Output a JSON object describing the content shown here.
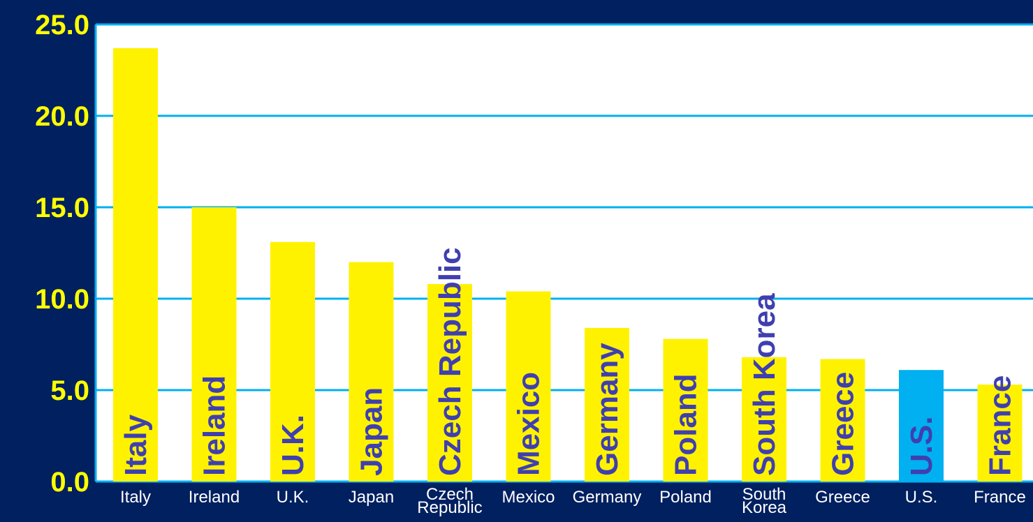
{
  "chart_data": {
    "type": "bar",
    "categories": [
      "Italy",
      "Ireland",
      "U.K.",
      "Japan",
      "Czech Republic",
      "Mexico",
      "Germany",
      "Poland",
      "South Korea",
      "Greece",
      "U.S.",
      "France"
    ],
    "category_labels": [
      [
        "Italy"
      ],
      [
        "Ireland"
      ],
      [
        "U.K."
      ],
      [
        "Japan"
      ],
      [
        "Czech",
        "Republic"
      ],
      [
        "Mexico"
      ],
      [
        "Germany"
      ],
      [
        "Poland"
      ],
      [
        "South",
        "Korea"
      ],
      [
        "Greece"
      ],
      [
        "U.S."
      ],
      [
        "France"
      ]
    ],
    "values": [
      23.7,
      15.0,
      13.1,
      12.0,
      10.8,
      10.4,
      8.4,
      7.8,
      6.8,
      6.7,
      6.1,
      5.3
    ],
    "highlight": "U.S.",
    "title": "",
    "xlabel": "",
    "ylabel": "",
    "ylim": [
      0,
      25
    ],
    "yticks": [
      0,
      5,
      10,
      15,
      20,
      25
    ],
    "ytick_labels": [
      "0.0",
      "5.0",
      "10.0",
      "15.0",
      "20.0",
      "25.0"
    ],
    "grid": true,
    "colors": {
      "background": "#002060",
      "plot_background": "#FFFFFF",
      "bar": "#FFF200",
      "highlight_bar": "#00B0F0",
      "grid": "#00B0F0",
      "bar_label": "#3F3FB0",
      "tick_label": "#FFFF00",
      "category_label": "#FFFFFF"
    }
  }
}
